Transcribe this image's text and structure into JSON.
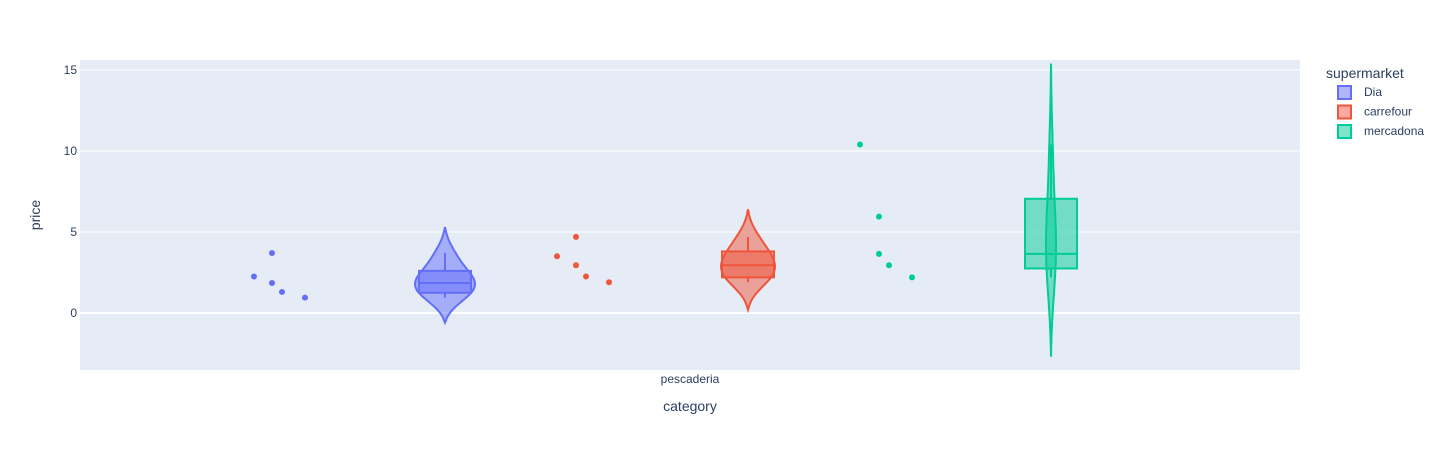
{
  "chart_data": {
    "type": "violin",
    "xlabel": "category",
    "ylabel": "price",
    "categories": [
      "pescaderia"
    ],
    "ylim": [
      -3.5,
      15.5
    ],
    "yticks": [
      0,
      5,
      10,
      15
    ],
    "grid": true,
    "legend": {
      "title": "supermarket",
      "placement": "right"
    },
    "series": [
      {
        "name": "Dia",
        "color": "#636efa",
        "points": [
          2.25,
          3.7,
          1.85,
          1.3,
          0.95
        ],
        "box": {
          "q1": 1.25,
          "median": 1.85,
          "q3": 2.6,
          "lower_fence": 0.95,
          "upper_fence": 3.7
        },
        "violin_range": [
          -0.6,
          5.3
        ]
      },
      {
        "name": "carrefour",
        "color": "#ef553b",
        "points": [
          3.5,
          4.7,
          2.95,
          2.25,
          1.9
        ],
        "box": {
          "q1": 2.2,
          "median": 2.95,
          "q3": 3.8,
          "lower_fence": 1.9,
          "upper_fence": 4.7
        },
        "violin_range": [
          0.2,
          6.4
        ]
      },
      {
        "name": "mercadona",
        "color": "#00cc96",
        "points": [
          10.4,
          5.95,
          3.65,
          2.95,
          2.2
        ],
        "box": {
          "q1": 2.75,
          "median": 3.65,
          "q3": 7.05,
          "lower_fence": 2.2,
          "upper_fence": 10.4
        },
        "violin_range": [
          -2.7,
          15.4
        ]
      }
    ]
  }
}
